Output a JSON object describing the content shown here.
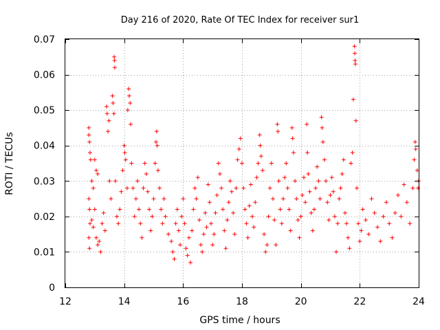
{
  "chart_data": {
    "type": "scatter",
    "title": "Day 216 of 2020, Rate Of TEC Index for receiver sur1",
    "xlabel": "GPS time / hours",
    "ylabel": "ROTI / TECUs",
    "xlim": [
      12,
      24
    ],
    "ylim": [
      0,
      0.07
    ],
    "x_ticks": [
      12,
      14,
      16,
      18,
      20,
      22,
      24
    ],
    "y_ticks": [
      0,
      0.01,
      0.02,
      0.03,
      0.04,
      0.05,
      0.06,
      0.07
    ],
    "x_tick_labels": [
      "12",
      "14",
      "16",
      "18",
      "20",
      "22",
      "24"
    ],
    "y_tick_labels": [
      "0",
      "0.01",
      "0.02",
      "0.03",
      "0.04",
      "0.05",
      "0.06",
      "0.07"
    ],
    "grid": true,
    "marker": "+",
    "marker_color": "#ff0000",
    "series": [
      {
        "points": [
          [
            12.8,
            0.045
          ],
          [
            12.8,
            0.043
          ],
          [
            12.82,
            0.041
          ],
          [
            12.84,
            0.038
          ],
          [
            12.86,
            0.036
          ],
          [
            12.8,
            0.025
          ],
          [
            12.82,
            0.022
          ],
          [
            12.84,
            0.018
          ],
          [
            12.8,
            0.014
          ],
          [
            12.82,
            0.011
          ],
          [
            12.9,
            0.03
          ],
          [
            12.95,
            0.028
          ],
          [
            13.0,
            0.036
          ],
          [
            13.05,
            0.033
          ],
          [
            13.1,
            0.032
          ],
          [
            12.9,
            0.019
          ],
          [
            12.95,
            0.017
          ],
          [
            13.0,
            0.022
          ],
          [
            13.05,
            0.014
          ],
          [
            13.1,
            0.012
          ],
          [
            13.15,
            0.013
          ],
          [
            13.2,
            0.01
          ],
          [
            13.25,
            0.018
          ],
          [
            13.3,
            0.021
          ],
          [
            13.35,
            0.016
          ],
          [
            13.4,
            0.051
          ],
          [
            13.42,
            0.049
          ],
          [
            13.45,
            0.044
          ],
          [
            13.48,
            0.047
          ],
          [
            13.5,
            0.03
          ],
          [
            13.55,
            0.025
          ],
          [
            13.6,
            0.054
          ],
          [
            13.62,
            0.052
          ],
          [
            13.65,
            0.049
          ],
          [
            13.66,
            0.065
          ],
          [
            13.67,
            0.064
          ],
          [
            13.68,
            0.062
          ],
          [
            13.7,
            0.03
          ],
          [
            13.75,
            0.02
          ],
          [
            13.8,
            0.018
          ],
          [
            13.85,
            0.022
          ],
          [
            13.9,
            0.027
          ],
          [
            13.95,
            0.033
          ],
          [
            14.0,
            0.04
          ],
          [
            14.02,
            0.038
          ],
          [
            14.05,
            0.036
          ],
          [
            14.1,
            0.028
          ],
          [
            14.12,
            0.05
          ],
          [
            14.15,
            0.056
          ],
          [
            14.17,
            0.054
          ],
          [
            14.2,
            0.052
          ],
          [
            14.22,
            0.046
          ],
          [
            14.25,
            0.035
          ],
          [
            14.3,
            0.028
          ],
          [
            14.35,
            0.02
          ],
          [
            14.4,
            0.025
          ],
          [
            14.45,
            0.03
          ],
          [
            14.5,
            0.022
          ],
          [
            14.55,
            0.018
          ],
          [
            14.6,
            0.014
          ],
          [
            14.65,
            0.028
          ],
          [
            14.7,
            0.035
          ],
          [
            14.75,
            0.032
          ],
          [
            14.8,
            0.027
          ],
          [
            14.85,
            0.022
          ],
          [
            14.9,
            0.016
          ],
          [
            14.95,
            0.02
          ],
          [
            15.0,
            0.025
          ],
          [
            15.05,
            0.035
          ],
          [
            15.08,
            0.041
          ],
          [
            15.1,
            0.044
          ],
          [
            15.12,
            0.04
          ],
          [
            15.15,
            0.033
          ],
          [
            15.2,
            0.028
          ],
          [
            15.25,
            0.022
          ],
          [
            15.3,
            0.018
          ],
          [
            15.35,
            0.025
          ],
          [
            15.4,
            0.02
          ],
          [
            15.5,
            0.015
          ],
          [
            15.6,
            0.013
          ],
          [
            15.65,
            0.01
          ],
          [
            15.7,
            0.008
          ],
          [
            15.75,
            0.018
          ],
          [
            15.8,
            0.022
          ],
          [
            15.85,
            0.016
          ],
          [
            15.9,
            0.012
          ],
          [
            15.95,
            0.02
          ],
          [
            16.0,
            0.025
          ],
          [
            16.05,
            0.018
          ],
          [
            16.1,
            0.011
          ],
          [
            16.15,
            0.009
          ],
          [
            16.2,
            0.014
          ],
          [
            16.25,
            0.007
          ],
          [
            16.3,
            0.016
          ],
          [
            16.35,
            0.022
          ],
          [
            16.4,
            0.028
          ],
          [
            16.45,
            0.025
          ],
          [
            16.5,
            0.031
          ],
          [
            16.55,
            0.019
          ],
          [
            16.6,
            0.012
          ],
          [
            16.65,
            0.01
          ],
          [
            16.7,
            0.015
          ],
          [
            16.75,
            0.021
          ],
          [
            16.8,
            0.017
          ],
          [
            16.85,
            0.029
          ],
          [
            16.9,
            0.024
          ],
          [
            16.95,
            0.018
          ],
          [
            17.0,
            0.012
          ],
          [
            17.05,
            0.015
          ],
          [
            17.1,
            0.021
          ],
          [
            17.15,
            0.026
          ],
          [
            17.2,
            0.035
          ],
          [
            17.25,
            0.032
          ],
          [
            17.3,
            0.028
          ],
          [
            17.35,
            0.022
          ],
          [
            17.4,
            0.016
          ],
          [
            17.45,
            0.011
          ],
          [
            17.5,
            0.019
          ],
          [
            17.55,
            0.024
          ],
          [
            17.6,
            0.03
          ],
          [
            17.65,
            0.027
          ],
          [
            17.7,
            0.021
          ],
          [
            17.75,
            0.015
          ],
          [
            17.8,
            0.028
          ],
          [
            17.85,
            0.036
          ],
          [
            17.9,
            0.039
          ],
          [
            17.95,
            0.042
          ],
          [
            18.0,
            0.035
          ],
          [
            18.05,
            0.028
          ],
          [
            18.1,
            0.022
          ],
          [
            18.15,
            0.018
          ],
          [
            18.2,
            0.014
          ],
          [
            18.25,
            0.023
          ],
          [
            18.3,
            0.029
          ],
          [
            18.35,
            0.02
          ],
          [
            18.4,
            0.017
          ],
          [
            18.45,
            0.024
          ],
          [
            18.5,
            0.031
          ],
          [
            18.55,
            0.035
          ],
          [
            18.6,
            0.043
          ],
          [
            18.62,
            0.04
          ],
          [
            18.65,
            0.037
          ],
          [
            18.7,
            0.033
          ],
          [
            18.75,
            0.015
          ],
          [
            18.8,
            0.01
          ],
          [
            18.85,
            0.012
          ],
          [
            18.9,
            0.02
          ],
          [
            18.95,
            0.028
          ],
          [
            19.0,
            0.035
          ],
          [
            19.05,
            0.025
          ],
          [
            19.1,
            0.019
          ],
          [
            19.15,
            0.012
          ],
          [
            19.2,
            0.046
          ],
          [
            19.22,
            0.044
          ],
          [
            19.25,
            0.03
          ],
          [
            19.3,
            0.022
          ],
          [
            19.35,
            0.018
          ],
          [
            19.4,
            0.025
          ],
          [
            19.45,
            0.031
          ],
          [
            19.5,
            0.035
          ],
          [
            19.55,
            0.028
          ],
          [
            19.6,
            0.022
          ],
          [
            19.65,
            0.016
          ],
          [
            19.7,
            0.045
          ],
          [
            19.72,
            0.042
          ],
          [
            19.75,
            0.038
          ],
          [
            19.8,
            0.03
          ],
          [
            19.85,
            0.025
          ],
          [
            19.9,
            0.019
          ],
          [
            19.95,
            0.014
          ],
          [
            20.0,
            0.02
          ],
          [
            20.05,
            0.026
          ],
          [
            20.1,
            0.031
          ],
          [
            20.15,
            0.024
          ],
          [
            20.2,
            0.046
          ],
          [
            20.22,
            0.038
          ],
          [
            20.25,
            0.032
          ],
          [
            20.3,
            0.027
          ],
          [
            20.35,
            0.021
          ],
          [
            20.4,
            0.016
          ],
          [
            20.45,
            0.022
          ],
          [
            20.5,
            0.028
          ],
          [
            20.55,
            0.034
          ],
          [
            20.6,
            0.03
          ],
          [
            20.65,
            0.025
          ],
          [
            20.7,
            0.048
          ],
          [
            20.72,
            0.045
          ],
          [
            20.75,
            0.041
          ],
          [
            20.8,
            0.036
          ],
          [
            20.85,
            0.03
          ],
          [
            20.9,
            0.024
          ],
          [
            20.95,
            0.019
          ],
          [
            21.0,
            0.026
          ],
          [
            21.05,
            0.031
          ],
          [
            21.1,
            0.027
          ],
          [
            21.15,
            0.02
          ],
          [
            21.2,
            0.01
          ],
          [
            21.25,
            0.018
          ],
          [
            21.3,
            0.025
          ],
          [
            21.35,
            0.028
          ],
          [
            21.4,
            0.032
          ],
          [
            21.45,
            0.036
          ],
          [
            21.5,
            0.021
          ],
          [
            21.55,
            0.018
          ],
          [
            21.6,
            0.014
          ],
          [
            21.65,
            0.011
          ],
          [
            21.7,
            0.035
          ],
          [
            21.75,
            0.038
          ],
          [
            21.78,
            0.053
          ],
          [
            21.82,
            0.068
          ],
          [
            21.83,
            0.066
          ],
          [
            21.84,
            0.064
          ],
          [
            21.85,
            0.063
          ],
          [
            21.87,
            0.047
          ],
          [
            21.9,
            0.028
          ],
          [
            21.95,
            0.018
          ],
          [
            22.0,
            0.013
          ],
          [
            22.05,
            0.016
          ],
          [
            22.1,
            0.022
          ],
          [
            22.2,
            0.019
          ],
          [
            22.3,
            0.015
          ],
          [
            22.4,
            0.025
          ],
          [
            22.5,
            0.021
          ],
          [
            22.6,
            0.017
          ],
          [
            22.7,
            0.013
          ],
          [
            22.8,
            0.02
          ],
          [
            22.9,
            0.024
          ],
          [
            23.0,
            0.018
          ],
          [
            23.1,
            0.014
          ],
          [
            23.2,
            0.021
          ],
          [
            23.3,
            0.026
          ],
          [
            23.4,
            0.02
          ],
          [
            23.5,
            0.029
          ],
          [
            23.6,
            0.024
          ],
          [
            23.7,
            0.018
          ],
          [
            23.8,
            0.028
          ],
          [
            23.85,
            0.036
          ],
          [
            23.88,
            0.041
          ],
          [
            23.9,
            0.039
          ],
          [
            23.95,
            0.033
          ],
          [
            24.0,
            0.03
          ],
          [
            23.98,
            0.028
          ]
        ]
      }
    ]
  }
}
